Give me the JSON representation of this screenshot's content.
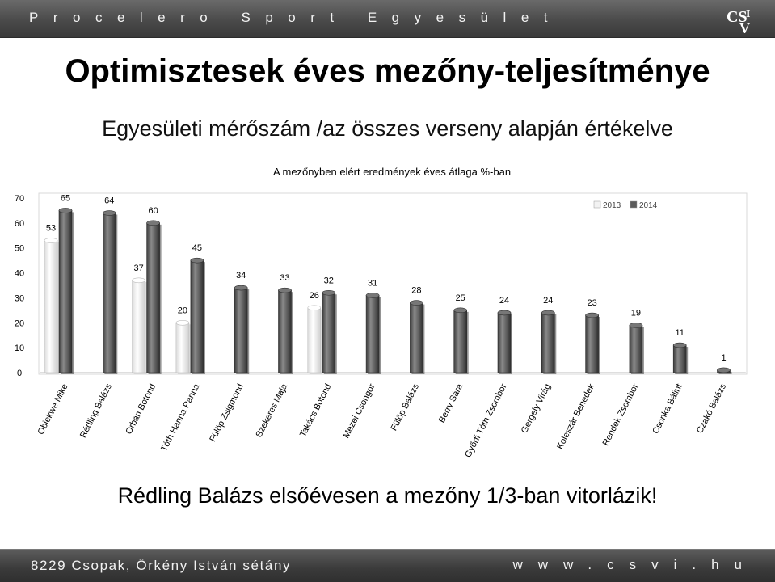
{
  "header": {
    "org_name": "Procelero Sport Egyesület",
    "logo_text": "CSVI"
  },
  "title": "Optimisztesek éves mezőny-teljesítménye",
  "subtitle": "Egyesületi mérőszám /az összes verseny alapján értékelve",
  "chart_data": {
    "type": "bar",
    "title": "A mezőnyben elért eredmények éves átlaga %-ban",
    "xlabel": "",
    "ylabel": "",
    "ylim": [
      0,
      70
    ],
    "yticks": [
      "0",
      "10",
      "20",
      "30",
      "40",
      "50",
      "60",
      "70"
    ],
    "grid": false,
    "legend_position": "top-right",
    "categories": [
      "Obiekwe Mike",
      "Rédling Balázs",
      "Orbán Botond",
      "Tóth Hanna Panna",
      "Fülöp Zsigmond",
      "Szekeres Maja",
      "Takács Botond",
      "Mezei Csongor",
      "Fülöp Balázs",
      "Berry Sára",
      "Győrfi Tóth Zsombor",
      "Gergely Virág",
      "Koleszár Benedek",
      "Rendek Zsombor",
      "Csonka Bálint",
      "Czakó Balázs"
    ],
    "series": [
      {
        "name": "2013",
        "color": "#f2f2f2",
        "values": [
          53,
          null,
          37,
          20,
          null,
          null,
          26,
          null,
          null,
          null,
          null,
          null,
          null,
          null,
          null,
          null
        ]
      },
      {
        "name": "2014",
        "color": "#5a5a5a",
        "values": [
          65,
          64,
          60,
          45,
          34,
          33,
          32,
          31,
          28,
          25,
          24,
          24,
          23,
          19,
          11,
          1
        ]
      }
    ]
  },
  "footer": {
    "tagline": "Rédling Balázs elsőévesen a mezőny 1/3-ban vitorlázik!",
    "address": "8229 Csopak, Örkény István sétány",
    "website": "www.csvi.hu"
  }
}
